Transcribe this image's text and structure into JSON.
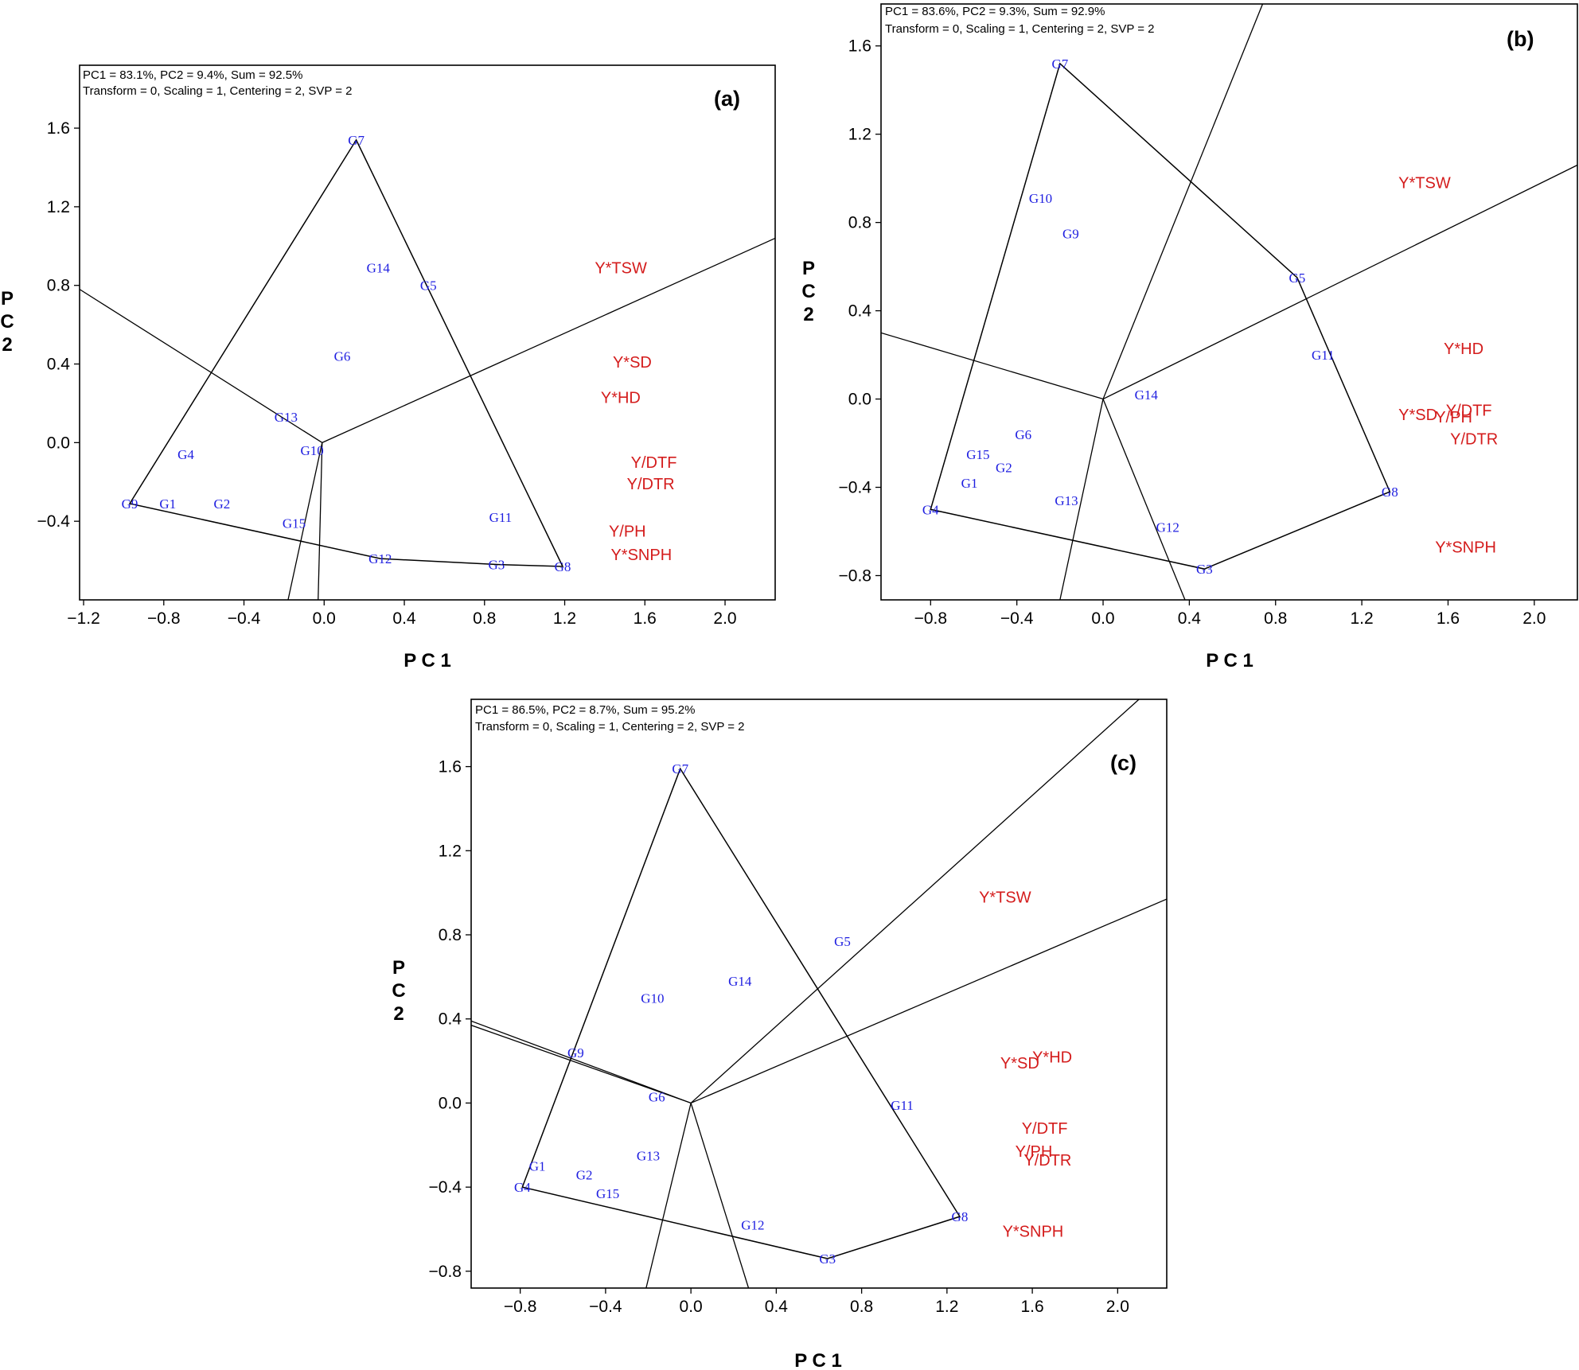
{
  "colors": {
    "genotype": "#1f1fe0",
    "environment": "#d41c1c",
    "lines": "#000000"
  },
  "chart_data": [
    {
      "type": "scatter",
      "panel_label": "(a)",
      "header_line1": "PC1 = 83.1%, PC2 = 9.4%, Sum = 92.5%",
      "header_line2": "Transform = 0, Scaling = 1, Centering = 2, SVP = 2",
      "xlabel": "P C 1",
      "ylabel": [
        "P",
        "C",
        "2"
      ],
      "xlim": [
        -1.22,
        2.25
      ],
      "ylim": [
        -0.8,
        1.92
      ],
      "xticks": [
        -1.2,
        -0.8,
        -0.4,
        0.0,
        0.4,
        0.8,
        1.2,
        1.6,
        2.0
      ],
      "xtick_labels": [
        "−1.2",
        "−0.8",
        "−0.4",
        "0.0",
        "0.4",
        "0.8",
        "1.2",
        "1.6",
        "2.0"
      ],
      "yticks": [
        -0.4,
        0.0,
        0.4,
        0.8,
        1.2,
        1.6
      ],
      "ytick_labels": [
        "−0.4",
        "0.0",
        "0.4",
        "0.8",
        "1.2",
        "1.6"
      ],
      "genotypes": [
        {
          "name": "G7",
          "x": 0.16,
          "y": 1.54
        },
        {
          "name": "G14",
          "x": 0.27,
          "y": 0.89
        },
        {
          "name": "G5",
          "x": 0.52,
          "y": 0.8
        },
        {
          "name": "G6",
          "x": 0.09,
          "y": 0.44
        },
        {
          "name": "G13",
          "x": -0.19,
          "y": 0.13
        },
        {
          "name": "G10",
          "x": -0.06,
          "y": -0.04
        },
        {
          "name": "G4",
          "x": -0.69,
          "y": -0.06
        },
        {
          "name": "G9",
          "x": -0.97,
          "y": -0.31
        },
        {
          "name": "G1",
          "x": -0.78,
          "y": -0.31
        },
        {
          "name": "G2",
          "x": -0.51,
          "y": -0.31
        },
        {
          "name": "G15",
          "x": -0.15,
          "y": -0.41
        },
        {
          "name": "G11",
          "x": 0.88,
          "y": -0.38
        },
        {
          "name": "G12",
          "x": 0.28,
          "y": -0.59
        },
        {
          "name": "G3",
          "x": 0.86,
          "y": -0.62
        },
        {
          "name": "G8",
          "x": 1.19,
          "y": -0.63
        }
      ],
      "environments": [
        {
          "name": "Y*TSW",
          "x": 1.35,
          "y": 0.89
        },
        {
          "name": "Y*SD",
          "x": 1.44,
          "y": 0.41
        },
        {
          "name": "Y*HD",
          "x": 1.38,
          "y": 0.23
        },
        {
          "name": "Y/DTF",
          "x": 1.53,
          "y": -0.1
        },
        {
          "name": "Y/DTR",
          "x": 1.51,
          "y": -0.21
        },
        {
          "name": "Y/PH",
          "x": 1.42,
          "y": -0.45
        },
        {
          "name": "Y*SNPH",
          "x": 1.43,
          "y": -0.57
        }
      ],
      "hull_order": [
        "G7",
        "G8",
        "G3",
        "G12",
        "G9"
      ],
      "rays": [
        [
          [
            -0.01,
            0.0
          ],
          [
            2.25,
            1.04
          ]
        ],
        [
          [
            -0.01,
            0.0
          ],
          [
            -1.22,
            0.78
          ]
        ],
        [
          [
            -0.01,
            0.0
          ],
          [
            -0.03,
            -0.8
          ]
        ],
        [
          [
            -0.01,
            0.0
          ],
          [
            -0.18,
            -0.8
          ]
        ]
      ]
    },
    {
      "type": "scatter",
      "panel_label": "(b)",
      "header_line1": "PC1 = 83.6%, PC2 = 9.3%, Sum = 92.9%",
      "header_line2": "Transform = 0, Scaling = 1, Centering = 2, SVP = 2",
      "xlabel": "P C 1",
      "ylabel": [
        "P",
        "C",
        "2"
      ],
      "xlim": [
        -1.03,
        2.2
      ],
      "ylim": [
        -0.91,
        1.79
      ],
      "xticks": [
        -0.8,
        -0.4,
        0.0,
        0.4,
        0.8,
        1.2,
        1.6,
        2.0
      ],
      "xtick_labels": [
        "−0.8",
        "−0.4",
        "0.0",
        "0.4",
        "0.8",
        "1.2",
        "1.6",
        "2.0"
      ],
      "yticks": [
        -0.8,
        -0.4,
        0.0,
        0.4,
        0.8,
        1.2,
        1.6
      ],
      "ytick_labels": [
        "−0.8",
        "−0.4",
        "0.0",
        "0.4",
        "0.8",
        "1.2",
        "1.6"
      ],
      "genotypes": [
        {
          "name": "G7",
          "x": -0.2,
          "y": 1.52
        },
        {
          "name": "G10",
          "x": -0.29,
          "y": 0.91
        },
        {
          "name": "G9",
          "x": -0.15,
          "y": 0.75
        },
        {
          "name": "G5",
          "x": 0.9,
          "y": 0.55
        },
        {
          "name": "G11",
          "x": 1.02,
          "y": 0.2
        },
        {
          "name": "G14",
          "x": 0.2,
          "y": 0.02
        },
        {
          "name": "G6",
          "x": -0.37,
          "y": -0.16
        },
        {
          "name": "G15",
          "x": -0.58,
          "y": -0.25
        },
        {
          "name": "G2",
          "x": -0.46,
          "y": -0.31
        },
        {
          "name": "G1",
          "x": -0.62,
          "y": -0.38
        },
        {
          "name": "G13",
          "x": -0.17,
          "y": -0.46
        },
        {
          "name": "G4",
          "x": -0.8,
          "y": -0.5
        },
        {
          "name": "G12",
          "x": 0.3,
          "y": -0.58
        },
        {
          "name": "G3",
          "x": 0.47,
          "y": -0.77
        },
        {
          "name": "G8",
          "x": 1.33,
          "y": -0.42
        }
      ],
      "environments": [
        {
          "name": "Y*TSW",
          "x": 1.37,
          "y": 0.98
        },
        {
          "name": "Y*HD",
          "x": 1.58,
          "y": 0.23
        },
        {
          "name": "Y/DTF",
          "x": 1.59,
          "y": -0.05
        },
        {
          "name": "Y*SD",
          "x": 1.37,
          "y": -0.07
        },
        {
          "name": "Y/PH",
          "x": 1.54,
          "y": -0.08
        },
        {
          "name": "Y/DTR",
          "x": 1.61,
          "y": -0.18
        },
        {
          "name": "Y*SNPH",
          "x": 1.54,
          "y": -0.67
        }
      ],
      "hull_order": [
        "G7",
        "G5",
        "G8",
        "G3",
        "G4"
      ],
      "rays": [
        [
          [
            0.0,
            0.0
          ],
          [
            0.74,
            1.79
          ]
        ],
        [
          [
            0.0,
            0.0
          ],
          [
            2.2,
            1.06
          ]
        ],
        [
          [
            0.0,
            0.0
          ],
          [
            -1.03,
            0.3
          ]
        ],
        [
          [
            0.0,
            0.0
          ],
          [
            -0.2,
            -0.91
          ]
        ],
        [
          [
            0.0,
            0.0
          ],
          [
            0.38,
            -0.91
          ]
        ]
      ]
    },
    {
      "type": "scatter",
      "panel_label": "(c)",
      "header_line1": "PC1 = 86.5%, PC2 = 8.7%, Sum = 95.2%",
      "header_line2": "Transform = 0, Scaling = 1, Centering = 2, SVP = 2",
      "xlabel": "P C 1",
      "ylabel": [
        "P",
        "C",
        "2"
      ],
      "xlim": [
        -1.03,
        2.23
      ],
      "ylim": [
        -0.88,
        1.92
      ],
      "xticks": [
        -0.8,
        -0.4,
        0.0,
        0.4,
        0.8,
        1.2,
        1.6,
        2.0
      ],
      "xtick_labels": [
        "−0.8",
        "−0.4",
        "0.0",
        "0.4",
        "0.8",
        "1.2",
        "1.6",
        "2.0"
      ],
      "yticks": [
        -0.8,
        -0.4,
        0.0,
        0.4,
        0.8,
        1.2,
        1.6
      ],
      "ytick_labels": [
        "−0.8",
        "−0.4",
        "0.0",
        "0.4",
        "0.8",
        "1.2",
        "1.6"
      ],
      "genotypes": [
        {
          "name": "G7",
          "x": -0.05,
          "y": 1.59
        },
        {
          "name": "G5",
          "x": 0.71,
          "y": 0.77
        },
        {
          "name": "G14",
          "x": 0.23,
          "y": 0.58
        },
        {
          "name": "G10",
          "x": -0.18,
          "y": 0.5
        },
        {
          "name": "G9",
          "x": -0.54,
          "y": 0.24
        },
        {
          "name": "G6",
          "x": -0.16,
          "y": 0.03
        },
        {
          "name": "G11",
          "x": 0.99,
          "y": -0.01
        },
        {
          "name": "G13",
          "x": -0.2,
          "y": -0.25
        },
        {
          "name": "G1",
          "x": -0.72,
          "y": -0.3
        },
        {
          "name": "G2",
          "x": -0.5,
          "y": -0.34
        },
        {
          "name": "G15",
          "x": -0.39,
          "y": -0.43
        },
        {
          "name": "G4",
          "x": -0.79,
          "y": -0.4
        },
        {
          "name": "G12",
          "x": 0.29,
          "y": -0.58
        },
        {
          "name": "G3",
          "x": 0.64,
          "y": -0.74
        },
        {
          "name": "G8",
          "x": 1.26,
          "y": -0.54
        }
      ],
      "environments": [
        {
          "name": "Y*TSW",
          "x": 1.35,
          "y": 0.98
        },
        {
          "name": "Y*HD",
          "x": 1.6,
          "y": 0.22
        },
        {
          "name": "Y*SD",
          "x": 1.45,
          "y": 0.19
        },
        {
          "name": "Y/DTF",
          "x": 1.55,
          "y": -0.12
        },
        {
          "name": "Y/PH",
          "x": 1.52,
          "y": -0.23
        },
        {
          "name": "Y/DTR",
          "x": 1.56,
          "y": -0.27
        },
        {
          "name": "Y*SNPH",
          "x": 1.46,
          "y": -0.61
        }
      ],
      "hull_order": [
        "G7",
        "G8",
        "G3",
        "G4"
      ],
      "rays": [
        [
          [
            0.0,
            0.0
          ],
          [
            2.1,
            1.92
          ]
        ],
        [
          [
            0.0,
            0.0
          ],
          [
            2.23,
            0.97
          ]
        ],
        [
          [
            0.0,
            0.0
          ],
          [
            -1.03,
            0.39
          ]
        ],
        [
          [
            0.0,
            0.0
          ],
          [
            -1.03,
            0.37
          ]
        ],
        [
          [
            0.0,
            0.0
          ],
          [
            -0.21,
            -0.88
          ]
        ],
        [
          [
            0.0,
            0.0
          ],
          [
            0.27,
            -0.88
          ]
        ]
      ]
    }
  ]
}
